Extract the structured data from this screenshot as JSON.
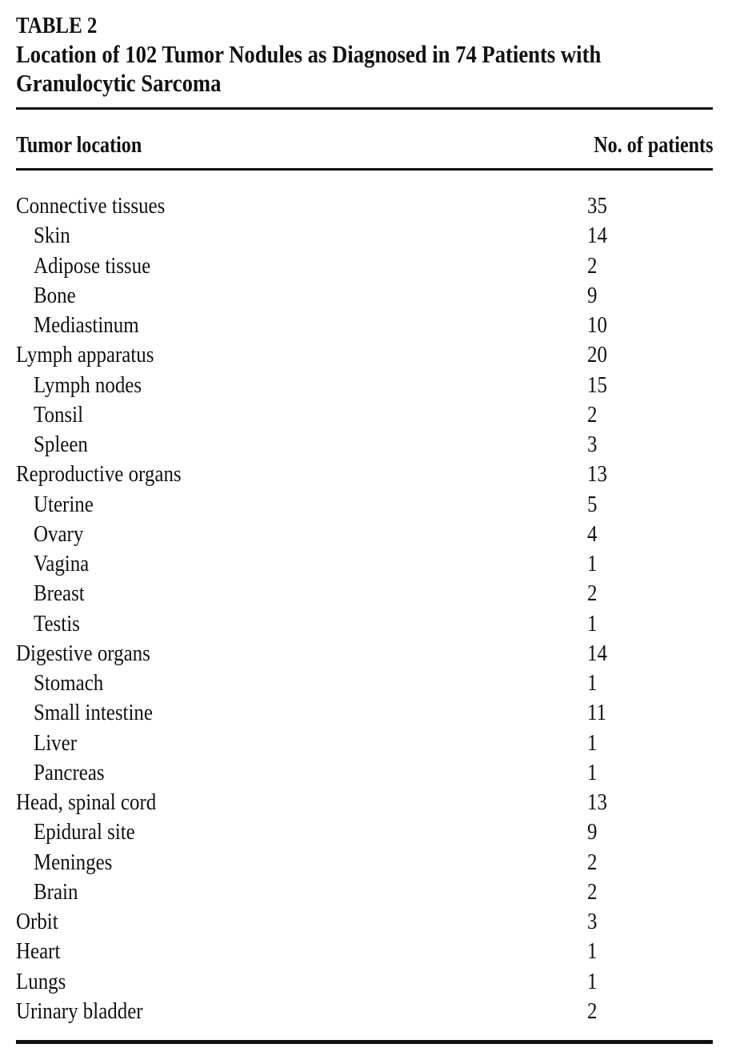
{
  "caption": {
    "label": "TABLE 2",
    "title_line1": "Location of 102 Tumor Nodules as Diagnosed in 74 Patients with",
    "title_line2": "Granulocytic Sarcoma"
  },
  "columns": {
    "location": "Tumor location",
    "patients": "No. of patients"
  },
  "rows": [
    {
      "location": "Connective tissues",
      "patients": "35",
      "level": "group"
    },
    {
      "location": "Skin",
      "patients": "14",
      "level": "sub"
    },
    {
      "location": "Adipose tissue",
      "patients": "2",
      "level": "sub"
    },
    {
      "location": "Bone",
      "patients": "9",
      "level": "sub"
    },
    {
      "location": "Mediastinum",
      "patients": "10",
      "level": "sub"
    },
    {
      "location": "Lymph apparatus",
      "patients": "20",
      "level": "group"
    },
    {
      "location": "Lymph nodes",
      "patients": "15",
      "level": "sub"
    },
    {
      "location": "Tonsil",
      "patients": "2",
      "level": "sub"
    },
    {
      "location": "Spleen",
      "patients": "3",
      "level": "sub"
    },
    {
      "location": "Reproductive organs",
      "patients": "13",
      "level": "group"
    },
    {
      "location": "Uterine",
      "patients": "5",
      "level": "sub"
    },
    {
      "location": "Ovary",
      "patients": "4",
      "level": "sub"
    },
    {
      "location": "Vagina",
      "patients": "1",
      "level": "sub"
    },
    {
      "location": "Breast",
      "patients": "2",
      "level": "sub"
    },
    {
      "location": "Testis",
      "patients": "1",
      "level": "sub"
    },
    {
      "location": "Digestive organs",
      "patients": "14",
      "level": "group"
    },
    {
      "location": "Stomach",
      "patients": "1",
      "level": "sub"
    },
    {
      "location": "Small intestine",
      "patients": "11",
      "level": "sub"
    },
    {
      "location": "Liver",
      "patients": "1",
      "level": "sub"
    },
    {
      "location": "Pancreas",
      "patients": "1",
      "level": "sub"
    },
    {
      "location": "Head, spinal cord",
      "patients": "13",
      "level": "group"
    },
    {
      "location": "Epidural site",
      "patients": "9",
      "level": "sub"
    },
    {
      "location": "Meninges",
      "patients": "2",
      "level": "sub"
    },
    {
      "location": "Brain",
      "patients": "2",
      "level": "sub"
    },
    {
      "location": "Orbit",
      "patients": "3",
      "level": "group"
    },
    {
      "location": "Heart",
      "patients": "1",
      "level": "group"
    },
    {
      "location": "Lungs",
      "patients": "1",
      "level": "group"
    },
    {
      "location": "Urinary bladder",
      "patients": "2",
      "level": "group"
    }
  ]
}
